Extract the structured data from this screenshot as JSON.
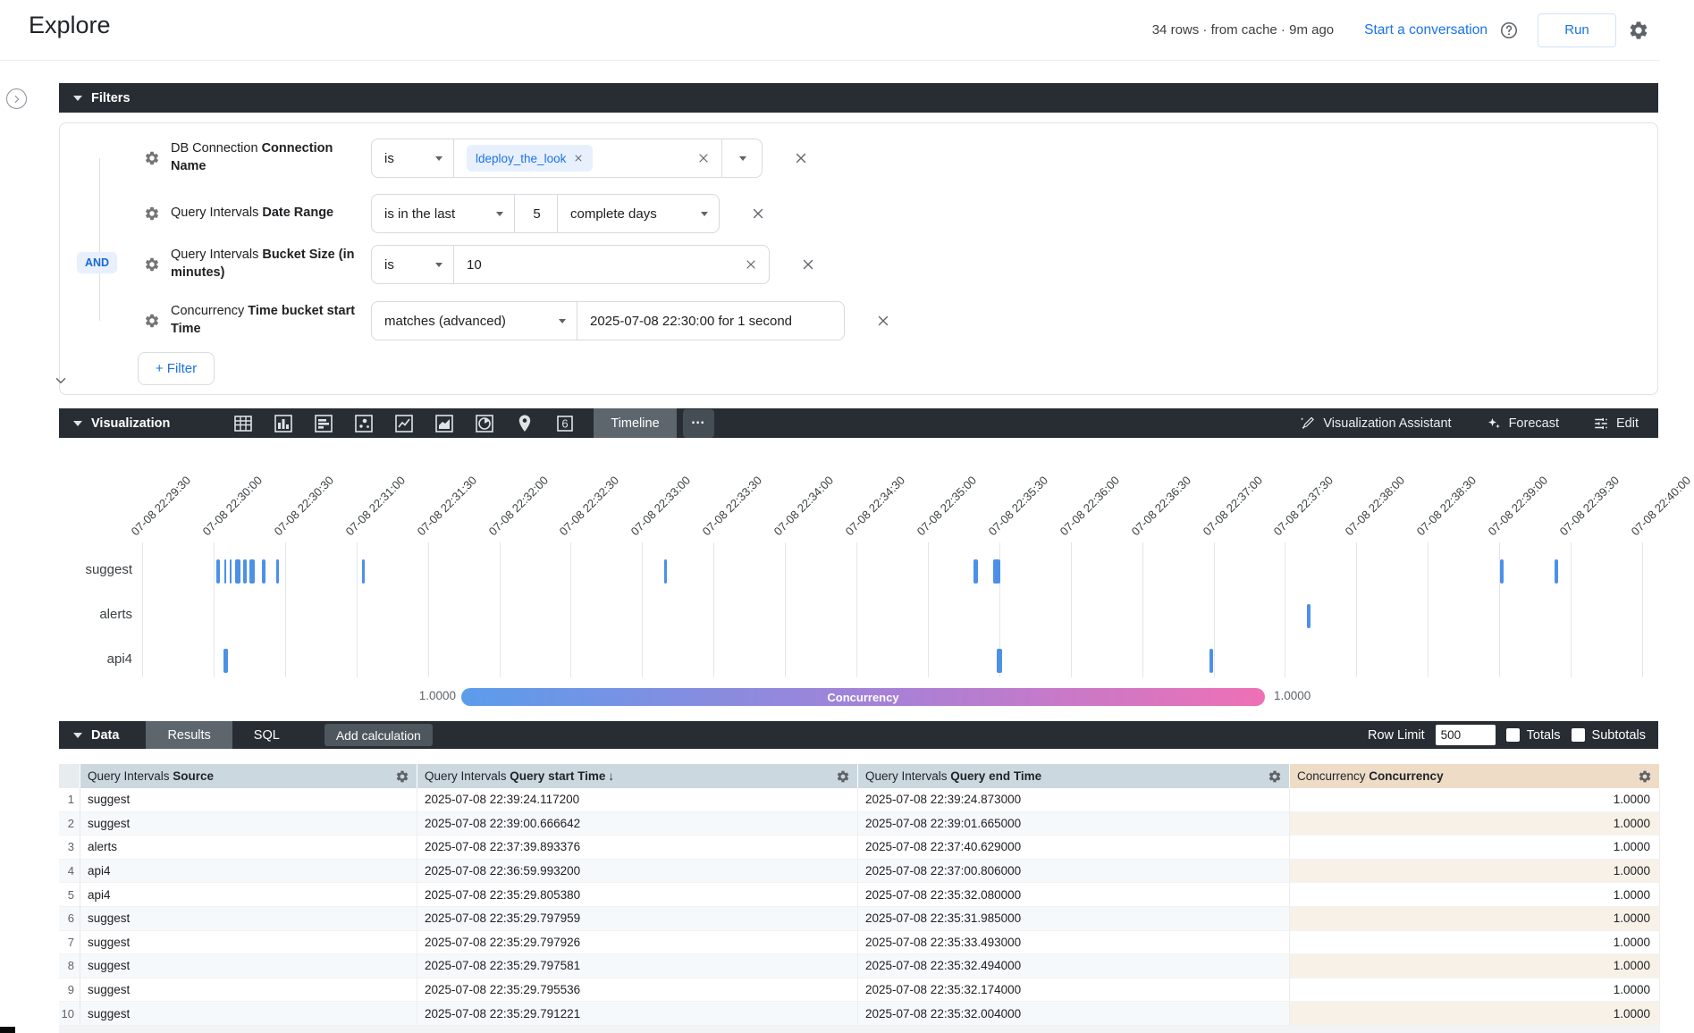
{
  "header": {
    "title": "Explore",
    "status": "34 rows · from cache · 9m ago",
    "conversation_link": "Start a conversation",
    "run_label": "Run",
    "accent_color": "#1a73e8"
  },
  "filters": {
    "label": "Filters",
    "and_badge": "AND",
    "add_filter": "+ Filter",
    "rows": [
      {
        "prefix": "DB Connection ",
        "name": "Connection Name",
        "operator": "is",
        "chip": "ldeploy_the_look"
      },
      {
        "prefix": "Query Intervals ",
        "name": "Date Range",
        "operator": "is in the last",
        "amount": "5",
        "unit": "complete days"
      },
      {
        "prefix": "Query Intervals ",
        "name": "Bucket Size (in minutes)",
        "operator": "is",
        "value": "10"
      },
      {
        "prefix": "Concurrency ",
        "name": "Time bucket start Time",
        "operator": "matches (advanced)",
        "value": "2025-07-08 22:30:00 for 1 second"
      }
    ]
  },
  "viz": {
    "label": "Visualization",
    "icon_names": [
      "table-chart",
      "bar-chart",
      "row-chart",
      "scatter-chart",
      "line-chart",
      "area-chart",
      "pie-chart",
      "map",
      "single-value"
    ],
    "selected_tab": "Timeline",
    "assistant": "Visualization Assistant",
    "forecast": "Forecast",
    "edit": "Edit"
  },
  "chart_data": {
    "type": "timeline",
    "rows": [
      "suggest",
      "alerts",
      "api4"
    ],
    "axis": {
      "start_time": "22:29:30",
      "interval_seconds": 30,
      "tick_labels": [
        "07-08 22:29:30",
        "07-08 22:30:00",
        "07-08 22:30:30",
        "07-08 22:31:00",
        "07-08 22:31:30",
        "07-08 22:32:00",
        "07-08 22:32:30",
        "07-08 22:33:00",
        "07-08 22:33:30",
        "07-08 22:34:00",
        "07-08 22:34:30",
        "07-08 22:35:00",
        "07-08 22:35:30",
        "07-08 22:36:00",
        "07-08 22:36:30",
        "07-08 22:37:00",
        "07-08 22:37:30",
        "07-08 22:38:00",
        "07-08 22:38:30",
        "07-08 22:39:00",
        "07-08 22:39:30",
        "07-08 22:40:00"
      ]
    },
    "mark_color": "#4d90e8",
    "marks": [
      {
        "row": "suggest",
        "time": "22:30:02",
        "w": 4
      },
      {
        "row": "suggest",
        "time": "22:30:05",
        "w": 2
      },
      {
        "row": "suggest",
        "time": "22:30:07",
        "w": 2
      },
      {
        "row": "suggest",
        "time": "22:30:10",
        "w": 6
      },
      {
        "row": "suggest",
        "time": "22:30:13",
        "w": 4
      },
      {
        "row": "suggest",
        "time": "22:30:16",
        "w": 6
      },
      {
        "row": "suggest",
        "time": "22:30:21",
        "w": 4
      },
      {
        "row": "suggest",
        "time": "22:30:27",
        "w": 3
      },
      {
        "row": "suggest",
        "time": "22:31:03",
        "w": 3
      },
      {
        "row": "suggest",
        "time": "22:33:10",
        "w": 3
      },
      {
        "row": "suggest",
        "time": "22:35:20",
        "w": 5
      },
      {
        "row": "suggest",
        "time": "22:35:29",
        "w": 8
      },
      {
        "row": "suggest",
        "time": "22:39:01",
        "w": 4
      },
      {
        "row": "suggest",
        "time": "22:39:24",
        "w": 4
      },
      {
        "row": "alerts",
        "time": "22:37:40",
        "w": 4
      },
      {
        "row": "api4",
        "time": "22:30:05",
        "w": 5
      },
      {
        "row": "api4",
        "time": "22:35:30",
        "w": 6
      },
      {
        "row": "api4",
        "time": "22:36:59",
        "w": 4
      }
    ],
    "legend": {
      "left_value": "1.0000",
      "right_value": "1.0000",
      "label": "Concurrency",
      "gradient_start": "#5b9ceb",
      "gradient_mid": "#a980d6",
      "gradient_end": "#ef70b5"
    }
  },
  "data_section": {
    "label": "Data",
    "results_tab": "Results",
    "sql_tab": "SQL",
    "add_calculation": "Add calculation",
    "row_limit_label": "Row Limit",
    "row_limit_value": "500",
    "totals_label": "Totals",
    "subtotals_label": "Subtotals",
    "table": {
      "columns": [
        {
          "prefix": "Query Intervals ",
          "name": "Source"
        },
        {
          "prefix": "Query Intervals ",
          "name": "Query start Time",
          "sort": "desc"
        },
        {
          "prefix": "Query Intervals ",
          "name": "Query end Time"
        },
        {
          "prefix": "Concurrency ",
          "name": "Concurrency"
        }
      ],
      "rows": [
        {
          "n": "1",
          "source": "suggest",
          "start": "2025-07-08 22:39:24.117200",
          "end": "2025-07-08 22:39:24.873000",
          "concurrency": "1.0000"
        },
        {
          "n": "2",
          "source": "suggest",
          "start": "2025-07-08 22:39:00.666642",
          "end": "2025-07-08 22:39:01.665000",
          "concurrency": "1.0000"
        },
        {
          "n": "3",
          "source": "alerts",
          "start": "2025-07-08 22:37:39.893376",
          "end": "2025-07-08 22:37:40.629000",
          "concurrency": "1.0000"
        },
        {
          "n": "4",
          "source": "api4",
          "start": "2025-07-08 22:36:59.993200",
          "end": "2025-07-08 22:37:00.806000",
          "concurrency": "1.0000"
        },
        {
          "n": "5",
          "source": "api4",
          "start": "2025-07-08 22:35:29.805380",
          "end": "2025-07-08 22:35:32.080000",
          "concurrency": "1.0000"
        },
        {
          "n": "6",
          "source": "suggest",
          "start": "2025-07-08 22:35:29.797959",
          "end": "2025-07-08 22:35:31.985000",
          "concurrency": "1.0000"
        },
        {
          "n": "7",
          "source": "suggest",
          "start": "2025-07-08 22:35:29.797926",
          "end": "2025-07-08 22:35:33.493000",
          "concurrency": "1.0000"
        },
        {
          "n": "8",
          "source": "suggest",
          "start": "2025-07-08 22:35:29.797581",
          "end": "2025-07-08 22:35:32.494000",
          "concurrency": "1.0000"
        },
        {
          "n": "9",
          "source": "suggest",
          "start": "2025-07-08 22:35:29.795536",
          "end": "2025-07-08 22:35:32.174000",
          "concurrency": "1.0000"
        },
        {
          "n": "10",
          "source": "suggest",
          "start": "2025-07-08 22:35:29.791221",
          "end": "2025-07-08 22:35:32.004000",
          "concurrency": "1.0000"
        }
      ]
    }
  }
}
